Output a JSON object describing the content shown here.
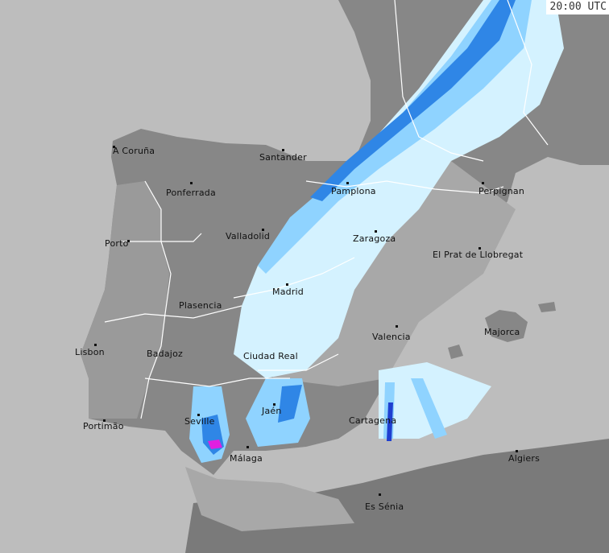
{
  "timestamp": "20:00 UTC",
  "colors": {
    "sea": "#bdbdbd",
    "land": "#878787",
    "land_dark": "#7a7a7a",
    "rain_light": "#d4f2ff",
    "rain_mid": "#8fd3ff",
    "rain_heavy": "#2f86e6",
    "rain_intense": "#1f3fd0",
    "rain_extreme": "#e020e0",
    "border": "#ffffff"
  },
  "cities": [
    {
      "name": "A Coruña"
    },
    {
      "name": "Santander"
    },
    {
      "name": "Pamplona"
    },
    {
      "name": "Perpignan"
    },
    {
      "name": "Ponferrada"
    },
    {
      "name": "Valladolid"
    },
    {
      "name": "Zaragoza"
    },
    {
      "name": "Porto"
    },
    {
      "name": "El Prat de Llobregat"
    },
    {
      "name": "Madrid"
    },
    {
      "name": "Plasencia"
    },
    {
      "name": "Valencia"
    },
    {
      "name": "Majorca"
    },
    {
      "name": "Lisbon"
    },
    {
      "name": "Badajoz"
    },
    {
      "name": "Ciudad Real"
    },
    {
      "name": "Jaén"
    },
    {
      "name": "Seville"
    },
    {
      "name": "Portimão"
    },
    {
      "name": "Cartagena"
    },
    {
      "name": "Málaga"
    },
    {
      "name": "Algiers"
    },
    {
      "name": "Es Sénia"
    }
  ]
}
